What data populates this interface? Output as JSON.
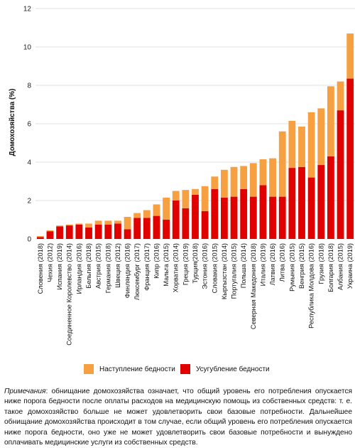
{
  "chart_data": {
    "type": "bar",
    "stacked": true,
    "ylabel": "Домохозяйства (%)",
    "ylim": [
      0,
      12
    ],
    "yticks": [
      0,
      2,
      4,
      6,
      8,
      10,
      12
    ],
    "grid": true,
    "categories": [
      "Словения (2018)",
      "Чехия (2012)",
      "Испания (2019)",
      "Соединенное Королевство (2014)",
      "Ирландия (2016)",
      "Бельгия (2018)",
      "Австрия (2015)",
      "Германия (2018)",
      "Швеция (2012)",
      "Финляндия (2016)",
      "Люксембург (2017)",
      "Франция (2017)",
      "Кипр (2016)",
      "Мальта (2015)",
      "Хорватия (2014)",
      "Греция (2019)",
      "Турция(2018)",
      "Эстония (2016)",
      "Словакия (2015)",
      "Кыргызстан (2014)",
      "Португалия (2015)",
      "Польша (2014)",
      "Северная Македония (2018)",
      "Италия (2019)",
      "Латвия (2016)",
      "Литва (2016)",
      "Румыния (2015)",
      "Венгрия (2015)",
      "Республика Молдова (2016)",
      "Грузия (2018)",
      "Болгария (2018)",
      "Албания (2015)",
      "Украина (2019)"
    ],
    "series": [
      {
        "name": "Усугубление бедности",
        "color": "#e00000",
        "values": [
          0.1,
          0.4,
          0.65,
          0.7,
          0.75,
          0.6,
          0.75,
          0.75,
          0.8,
          0.5,
          1.1,
          1.1,
          1.2,
          1.0,
          2.0,
          1.6,
          2.3,
          1.45,
          2.6,
          2.15,
          2.2,
          2.6,
          2.2,
          2.8,
          2.2,
          2.2,
          3.7,
          3.75,
          3.2,
          3.85,
          4.3,
          6.7,
          8.35
        ]
      },
      {
        "name": "Наступление бедности",
        "color": "#f7a042",
        "values": [
          0.05,
          0.05,
          0.05,
          0.05,
          0.05,
          0.2,
          0.2,
          0.2,
          0.15,
          0.65,
          0.25,
          0.4,
          0.6,
          1.15,
          0.5,
          0.95,
          0.3,
          1.3,
          0.65,
          1.45,
          1.55,
          1.2,
          1.75,
          1.35,
          2.0,
          3.4,
          2.45,
          2.1,
          3.4,
          2.95,
          3.65,
          1.5,
          2.35
        ]
      }
    ]
  },
  "legend": {
    "onset_label": "Наступление бедности",
    "deepening_label": "Усугубление бедности"
  },
  "note": {
    "prefix": "Примечания",
    "text": ": обнищание домохозяйства означает, что общий уровень его потребления опускается ниже порога бедности после оплаты расходов на медицинскую помощь из собственных средств: т. е. такое домохозяйство больше не может удовлетворить свои базовые потребности. Дальнейшее обнищание домохозяйства происходит в том случае, если общий уровень его потребления опускается ниже порога бедности, оно уже не может удовлетворить свои базовые потребности и вынуждено оплачивать медицинские услуги из собственных средств."
  }
}
